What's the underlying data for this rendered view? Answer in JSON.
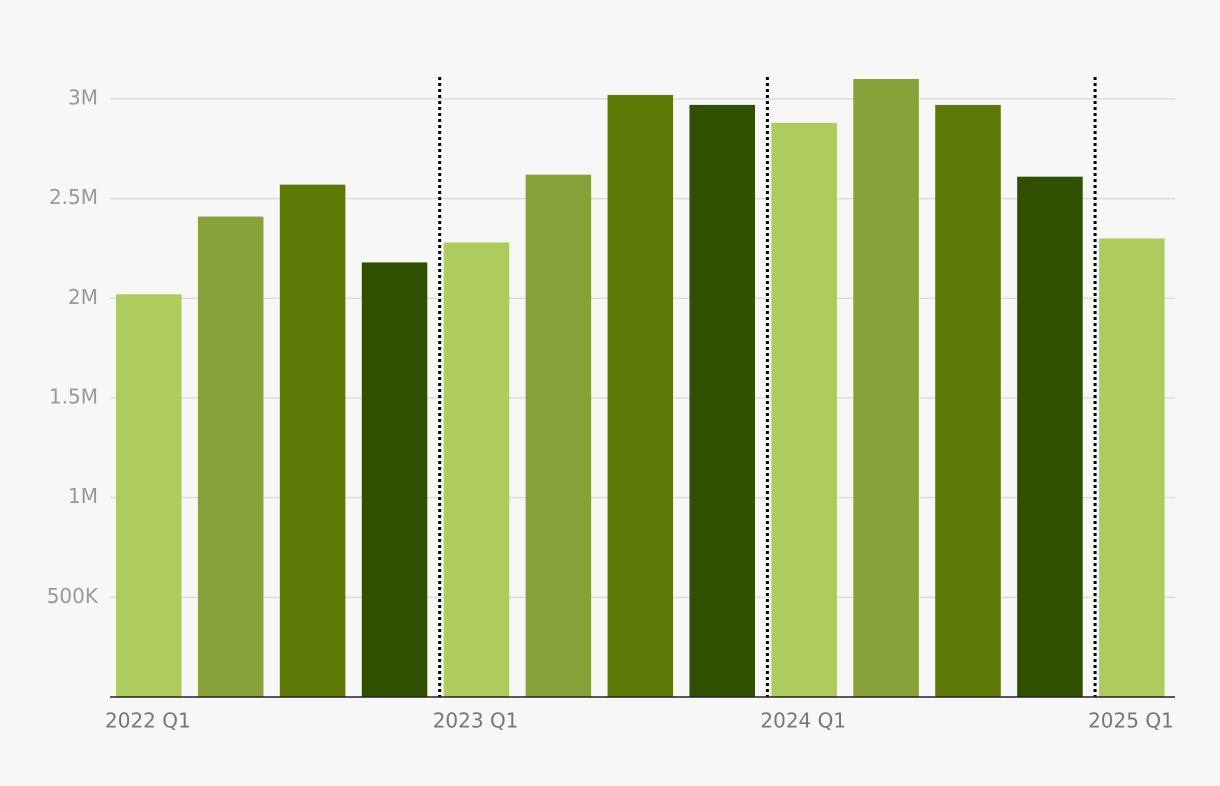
{
  "chart_data": {
    "type": "bar",
    "categories": [
      "2022 Q1",
      null,
      null,
      null,
      "2023 Q1",
      null,
      null,
      null,
      "2024 Q1",
      null,
      null,
      null,
      "2025 Q1"
    ],
    "values": [
      2020000,
      2410000,
      2570000,
      2180000,
      2280000,
      2620000,
      3020000,
      2970000,
      2880000,
      3100000,
      2970000,
      2610000,
      2300000
    ],
    "colors": [
      "#aecb5d",
      "#87a238",
      "#5c7a05",
      "#2f5000",
      "#aecb5d",
      "#87a238",
      "#5c7a05",
      "#2f5000",
      "#aecb5d",
      "#87a238",
      "#5c7a05",
      "#2f5000",
      "#aecb5d"
    ],
    "ylim": [
      0,
      3100000
    ],
    "yticks": [
      {
        "value": 500000,
        "label": "500K"
      },
      {
        "value": 1000000,
        "label": "1M"
      },
      {
        "value": 1500000,
        "label": "1.5M"
      },
      {
        "value": 2000000,
        "label": "2M"
      },
      {
        "value": 2500000,
        "label": "2.5M"
      },
      {
        "value": 3000000,
        "label": "3M"
      }
    ],
    "grid": true
  }
}
